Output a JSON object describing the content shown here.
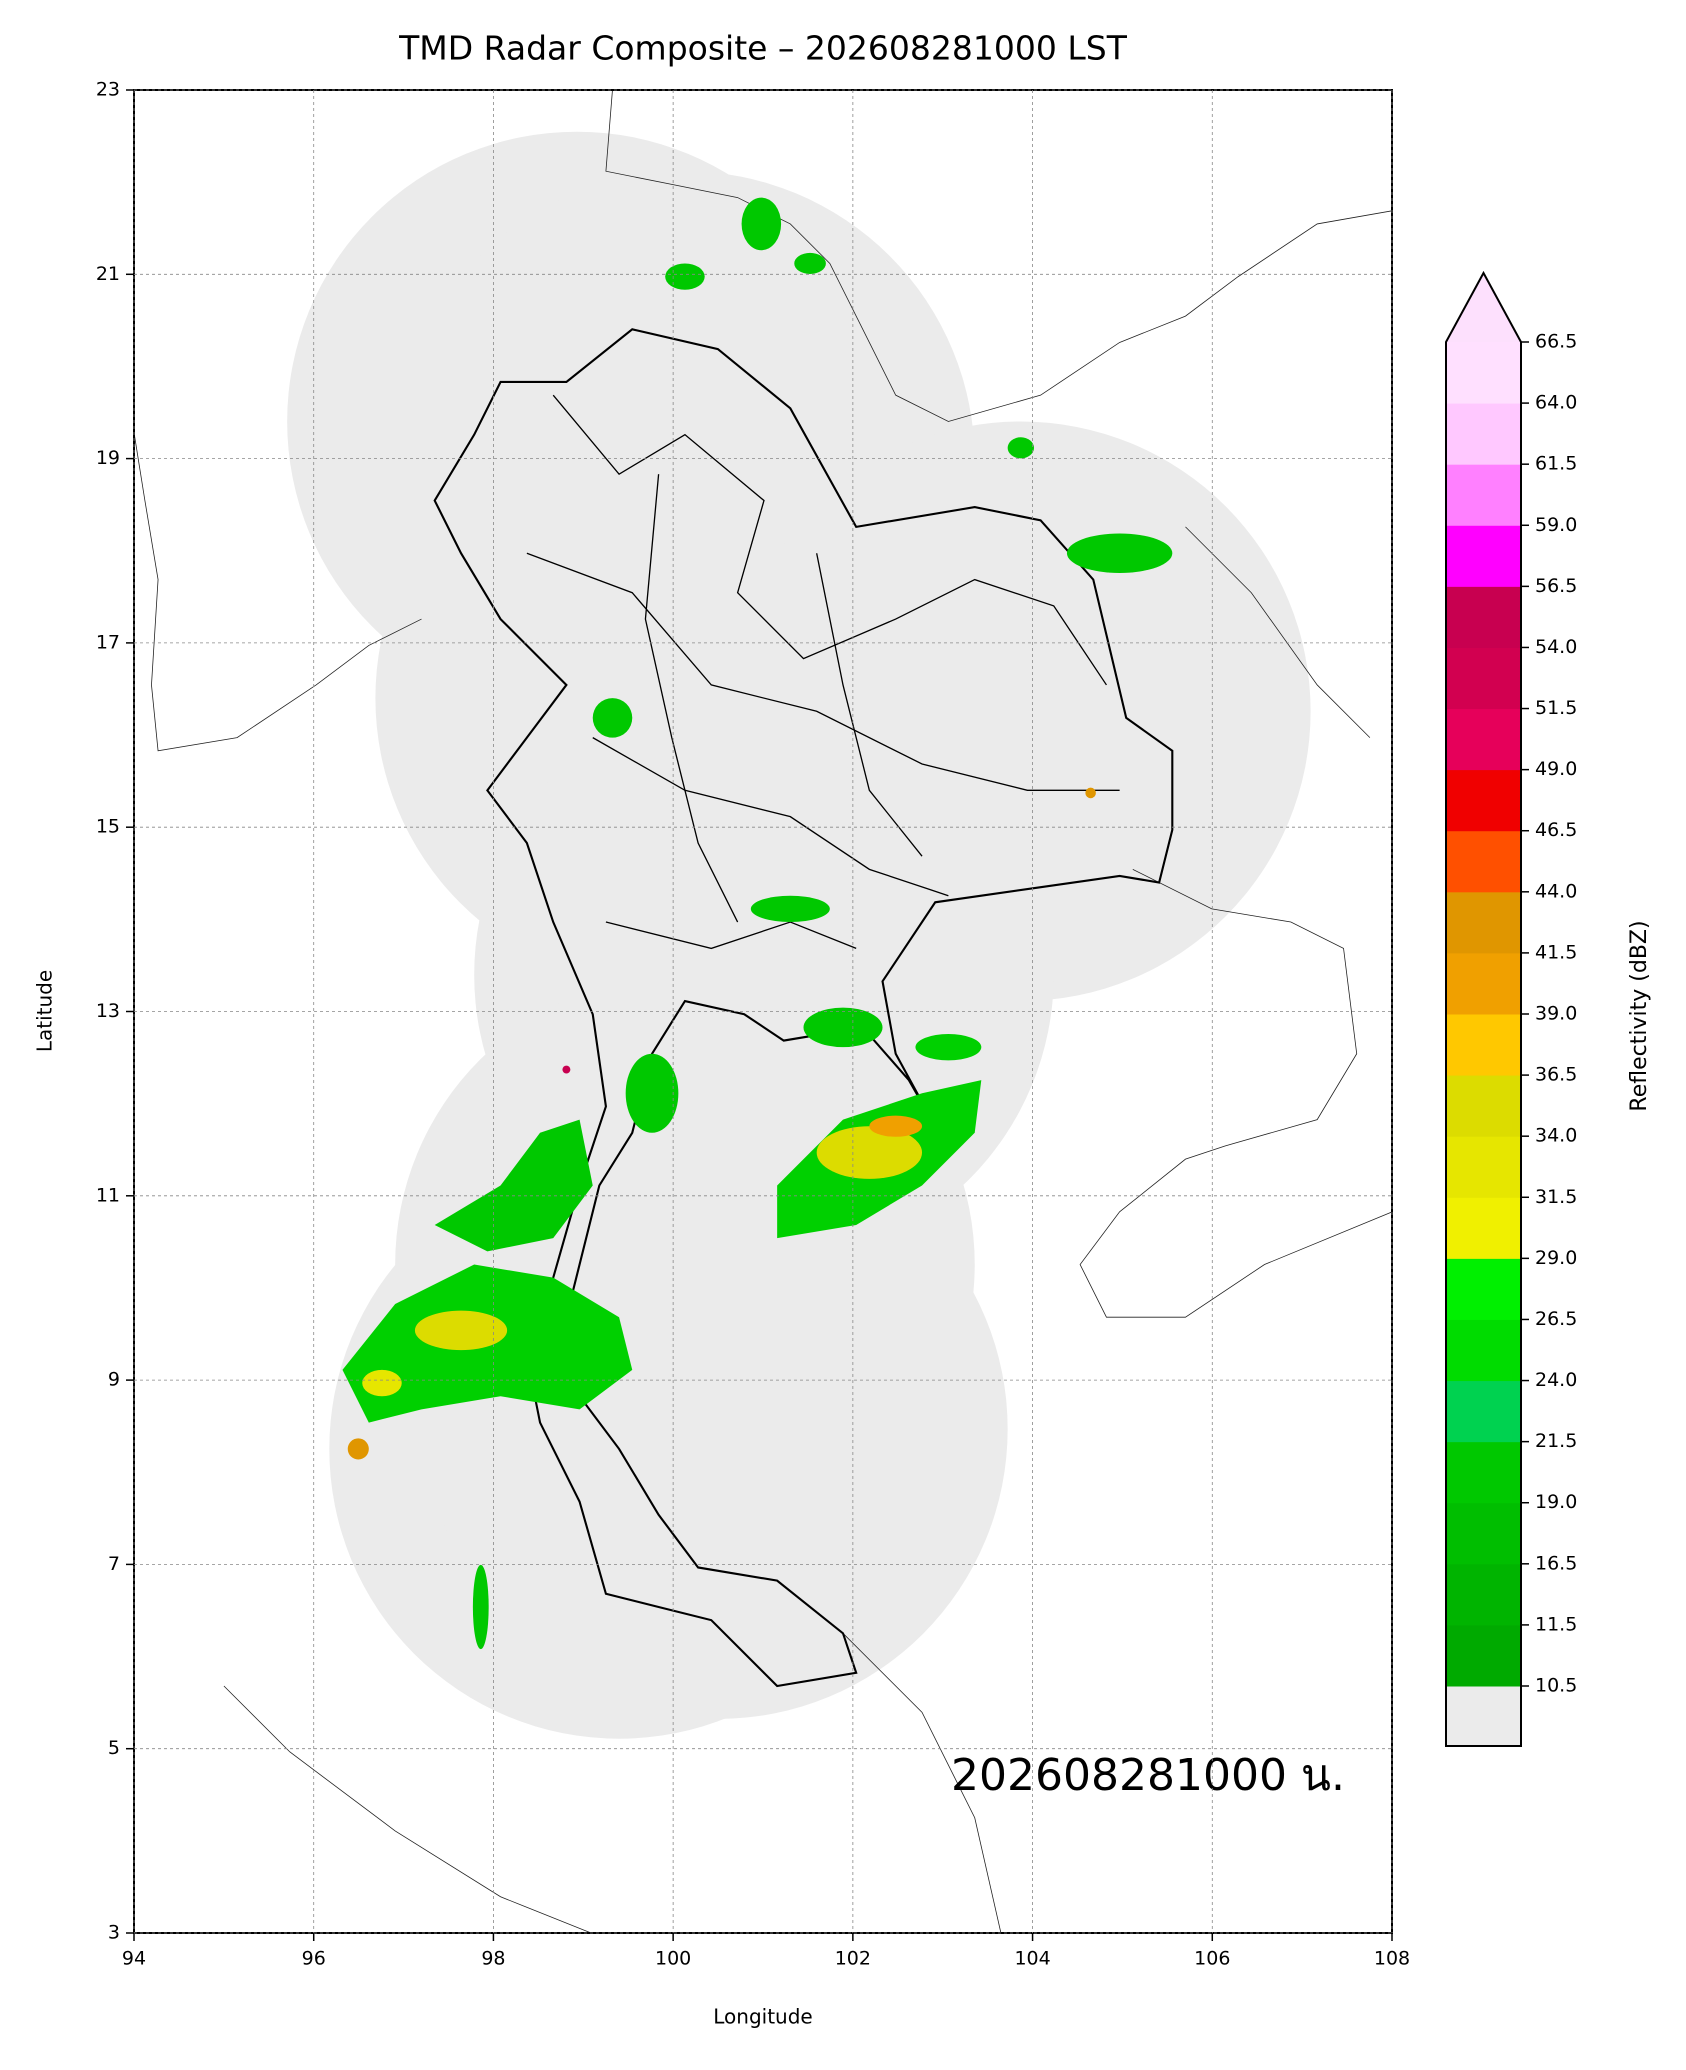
{
  "chart_data": {
    "type": "map",
    "title": "TMD Radar Composite – 202608281000 LST",
    "xlabel": "Longitude",
    "ylabel": "Latitude",
    "xlim": [
      94,
      108
    ],
    "ylim": [
      3,
      23
    ],
    "xticks": [
      94,
      96,
      98,
      100,
      102,
      104,
      106,
      108
    ],
    "yticks": [
      3,
      5,
      7,
      9,
      11,
      13,
      15,
      17,
      19,
      21,
      23
    ],
    "grid": true,
    "annotation": "202608281000 น.",
    "colorbar": {
      "label": "Reflectivity (dBZ)",
      "ticks": [
        10.5,
        11.5,
        16.5,
        {
          "value": 19,
          "label": "19.0"
        },
        21.5,
        {
          "value": 24,
          "label": "24.0"
        },
        26.5,
        {
          "value": 29,
          "label": "29.0"
        },
        31.5,
        {
          "value": 34,
          "label": "34.0"
        },
        36.5,
        {
          "value": 39,
          "label": "39.0"
        },
        41.5,
        {
          "value": 44,
          "label": "44.0"
        },
        46.5,
        {
          "value": 49,
          "label": "49.0"
        },
        51.5,
        {
          "value": 54,
          "label": "54.0"
        },
        56.5,
        {
          "value": 59,
          "label": "59.0"
        },
        61.5,
        {
          "value": 64,
          "label": "64.0"
        },
        66.5
      ],
      "colors": [
        "#00aa00",
        "#00b400",
        "#00be00",
        "#00c800",
        "#00d250",
        "#00dc00",
        "#00f000",
        "#f0f000",
        "#e6e600",
        "#dcdc00",
        "#ffc800",
        "#f0a000",
        "#e09600",
        "#ff5000",
        "#f00000",
        "#e6005a",
        "#d20050",
        "#c80050",
        "#ff00ff",
        "#ff80ff",
        "#ffc8ff",
        "#ffe0ff"
      ],
      "under_color": "#ebebeb",
      "over_color": "#fde0fd"
    }
  }
}
